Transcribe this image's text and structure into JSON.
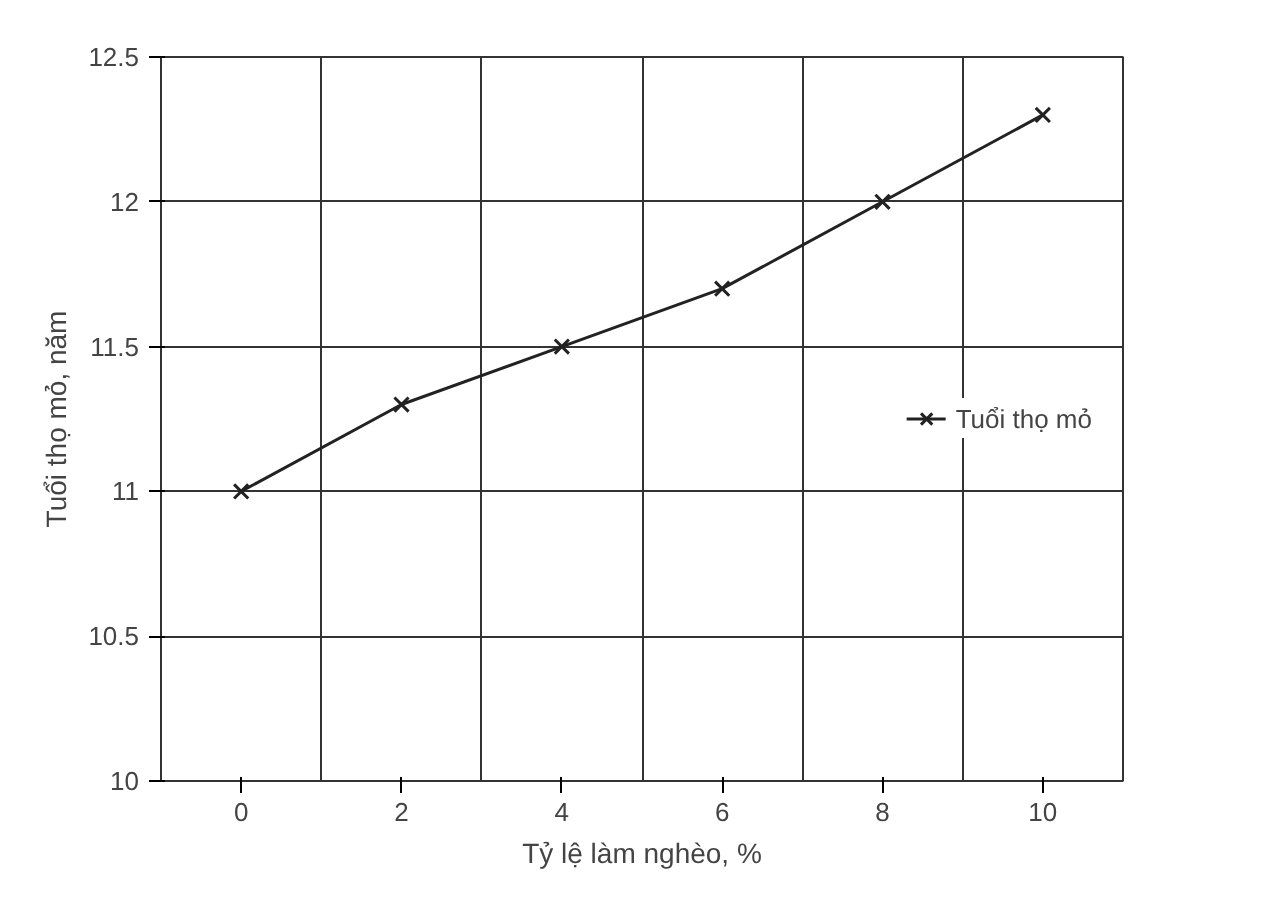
{
  "chart_data": {
    "type": "line",
    "xlabel": "Tỷ lệ làm nghèo, %",
    "ylabel": "Tuổi thọ mỏ, năm",
    "categories": [
      "0",
      "2",
      "4",
      "6",
      "8",
      "10"
    ],
    "series": [
      {
        "name": "Tuổi thọ mỏ",
        "color": "#222222",
        "values": [
          11.0,
          11.3,
          11.5,
          11.7,
          12.0,
          12.3
        ]
      }
    ],
    "ylim": [
      10,
      12.5
    ],
    "yticks": [
      10,
      10.5,
      11,
      11.5,
      12,
      12.5
    ],
    "grid": true,
    "legend": "right",
    "marker": "cross",
    "line_style": "solid"
  }
}
